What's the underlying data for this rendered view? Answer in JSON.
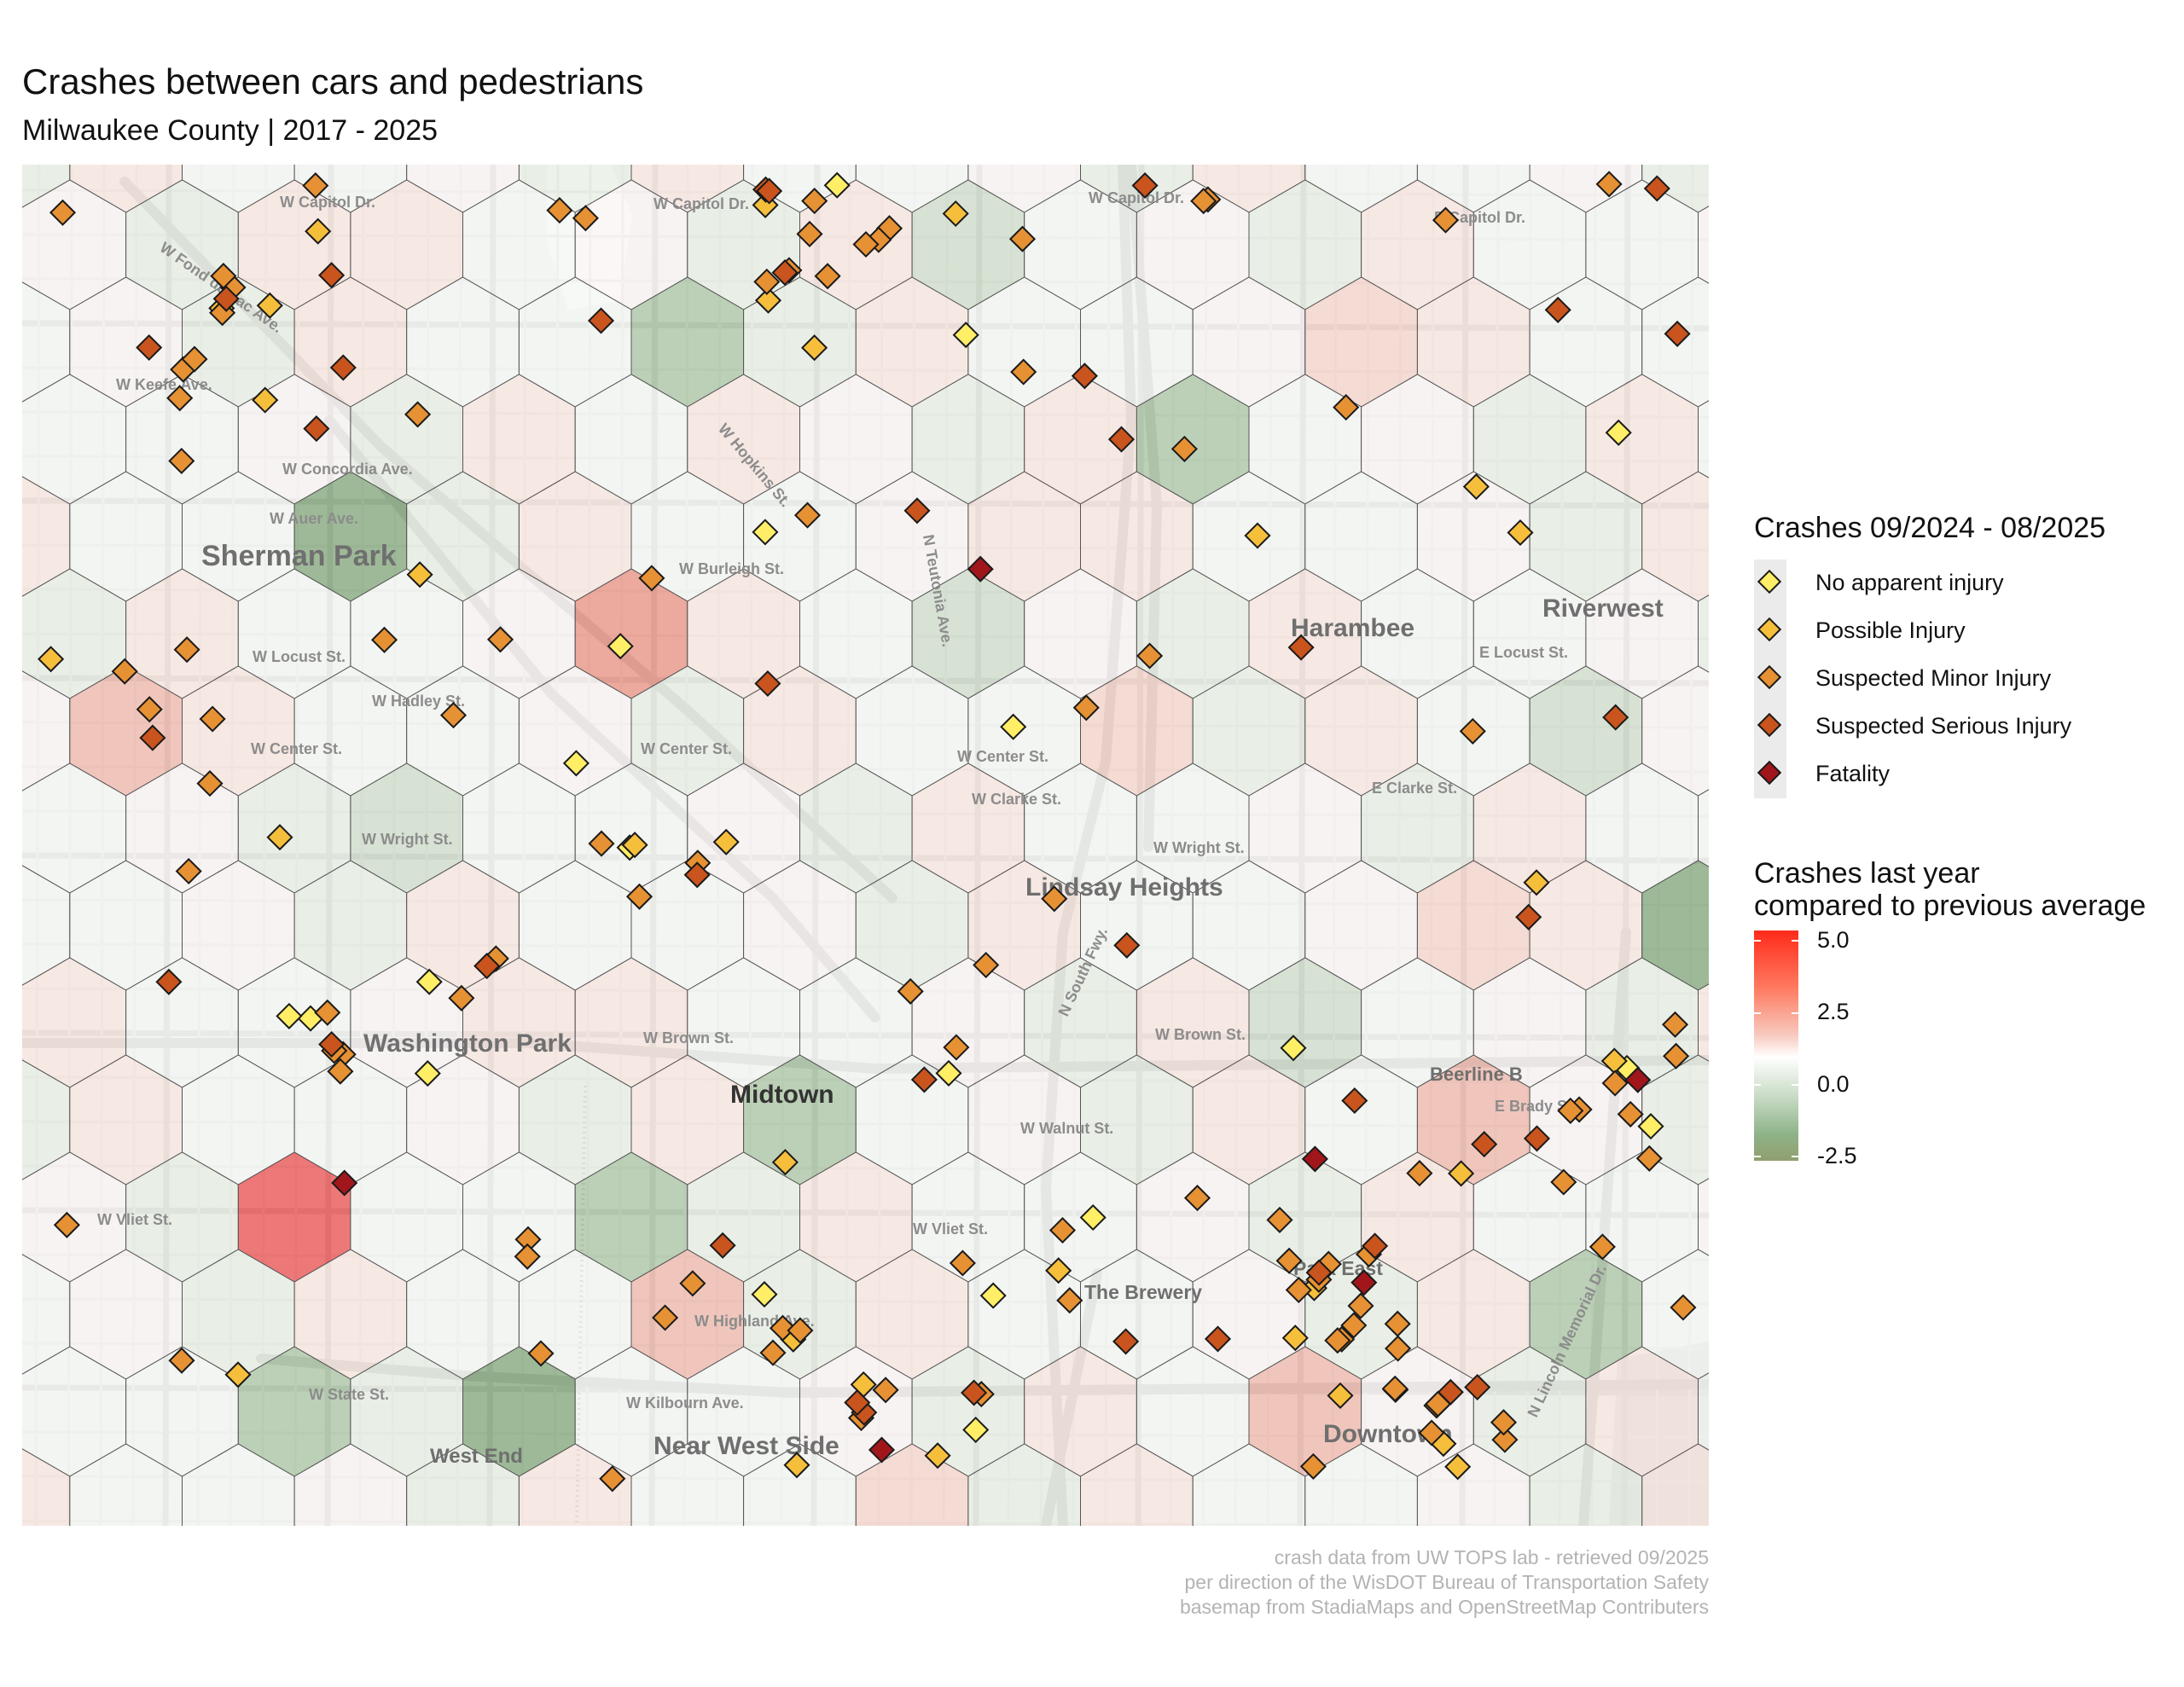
{
  "title": "Crashes between cars and pedestrians",
  "subtitle": "Milwaukee County | 2017 - 2025",
  "caption": [
    "crash data from UW TOPS lab - retrieved 09/2025",
    "per direction of the WisDOT Bureau of Transportation Safety",
    "basemap from StadiaMaps and OpenStreetMap Contributers"
  ],
  "legend_points": {
    "title": "Crashes 09/2024 - 08/2025",
    "items": [
      {
        "label": "No apparent injury",
        "color": "#ffee66"
      },
      {
        "label": "Possible Injury",
        "color": "#f5bf3c"
      },
      {
        "label": "Suspected Minor Injury",
        "color": "#e69133"
      },
      {
        "label": "Suspected Serious Injury",
        "color": "#c9541d"
      },
      {
        "label": "Fatality",
        "color": "#a0161b"
      }
    ]
  },
  "legend_fill": {
    "title_line1": "Crashes last year",
    "title_line2": "compared to previous average",
    "ticks": [
      "5.0",
      "2.5",
      "0.0",
      "-2.5"
    ]
  },
  "map": {
    "neighborhoods": [
      "Sherman Park",
      "Harambee",
      "Riverwest",
      "Lindsay Heights",
      "Washington Park",
      "Midtown",
      "Beerline B",
      "Park East",
      "The Brewery",
      "Downtown",
      "West End",
      "Near West Side"
    ],
    "streets": [
      "W Capitol Dr.",
      "W Capitol Dr.",
      "W Capitol Dr.",
      "E Capitol Dr.",
      "W Fond du Lac Ave.",
      "W Keefe Ave.",
      "W Concordia Ave.",
      "W Auer Ave.",
      "W Burleigh St.",
      "W Locust St.",
      "E Locust St.",
      "W Hadley St.",
      "W Center St.",
      "W Center St.",
      "W Center St.",
      "E Clarke St.",
      "W Clarke St.",
      "W Wright St.",
      "W Wright St.",
      "W Brown St.",
      "W Brown St.",
      "W Walnut St.",
      "E Brady St.",
      "W Vliet St.",
      "W Vliet St.",
      "W Highland Ave.",
      "W State St.",
      "W Kilbourn Ave.",
      "N Lincoln Memorial Dr.",
      "N South Fwy.",
      "N Teutonia Ave.",
      "W Hopkins St."
    ],
    "crashes": {
      "no_apparent_injury": 20,
      "possible_injury": 32,
      "suspected_minor_injury": 103,
      "suspected_serious_injury": 40,
      "fatality": 6
    }
  }
}
